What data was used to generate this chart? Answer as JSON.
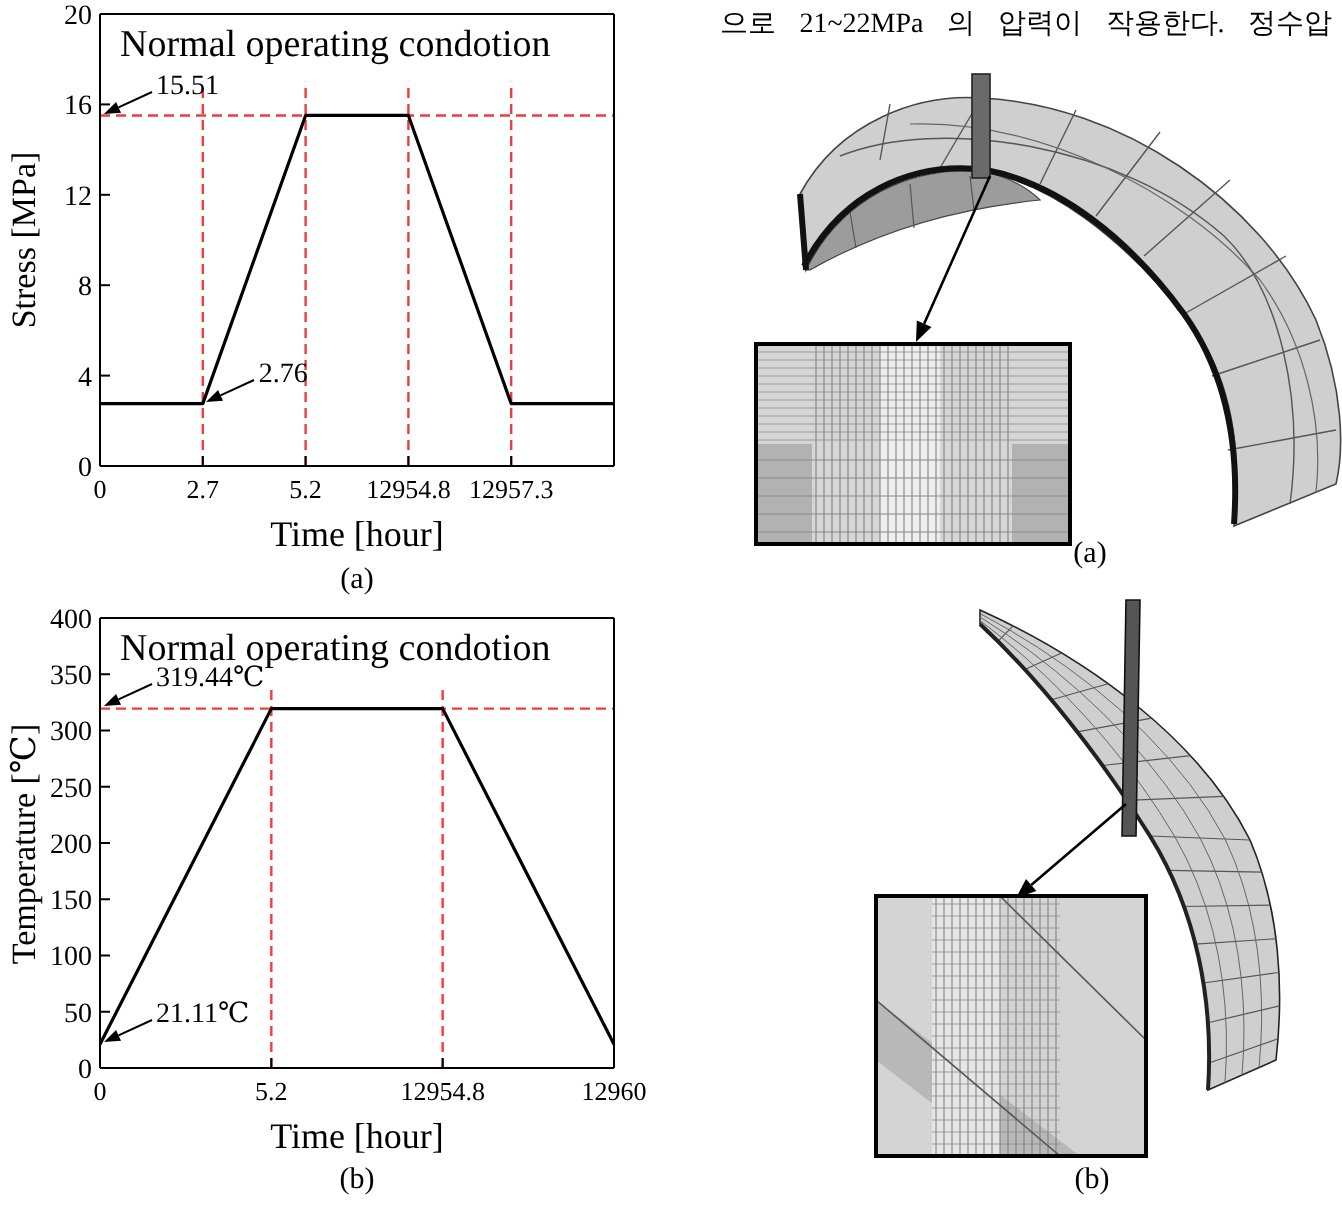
{
  "chart_data": [
    {
      "type": "line",
      "title": "Normal operating condotion",
      "xlabel": "Time [hour]",
      "ylabel": "Stress [MPa]",
      "categories": [
        "0",
        "2.7",
        "5.2",
        "12954.8",
        "12957.3",
        null
      ],
      "values": [
        2.76,
        2.76,
        15.51,
        15.51,
        2.76,
        2.76
      ],
      "color": "#000000",
      "ylim": [
        0,
        20
      ],
      "yticks": [
        0,
        4,
        8,
        12,
        16,
        20
      ],
      "ref_lines": [
        {
          "axis": "y",
          "value": 15.51,
          "color": "#f03c3c",
          "line_style": "dashed"
        },
        {
          "axis": "x",
          "value": "2.7",
          "color": "#f03c3c",
          "line_style": "dashed"
        },
        {
          "axis": "x",
          "value": "5.2",
          "color": "#f03c3c",
          "line_style": "dashed"
        },
        {
          "axis": "x",
          "value": "12954.8",
          "color": "#f03c3c",
          "line_style": "dashed"
        },
        {
          "axis": "x",
          "value": "12957.3",
          "color": "#f03c3c",
          "line_style": "dashed"
        }
      ],
      "annotations": [
        {
          "text": "15.51",
          "x": "0",
          "y": 15.51
        },
        {
          "text": "2.76",
          "x": "2.7",
          "y": 2.76
        },
        "(a)"
      ]
    },
    {
      "type": "line",
      "title": "Normal operating condotion",
      "xlabel": "Time [hour]",
      "ylabel": "Temperature [℃]",
      "categories": [
        "0",
        "5.2",
        "12954.8",
        "12960"
      ],
      "values": [
        21.11,
        319.44,
        319.44,
        21.11
      ],
      "color": "#000000",
      "ylim": [
        0,
        400
      ],
      "yticks": [
        0,
        50,
        100,
        150,
        200,
        250,
        300,
        350,
        400
      ],
      "ref_lines": [
        {
          "axis": "y",
          "value": 319.44,
          "color": "#f03c3c",
          "line_style": "dashed"
        },
        {
          "axis": "x",
          "value": "5.2",
          "color": "#f03c3c",
          "line_style": "dashed"
        },
        {
          "axis": "x",
          "value": "12954.8",
          "color": "#f03c3c",
          "line_style": "dashed"
        }
      ],
      "annotations": [
        {
          "text": "319.44℃",
          "x": "0",
          "y": 319.44
        },
        {
          "text": "21.11℃",
          "x": "0",
          "y": 21.11
        },
        "(b)"
      ]
    },
    {
      "type": "other",
      "annotations": [
        "으로 21~22MPa 의 압력이 작용한다. 정수압",
        "(a)",
        "(b)"
      ]
    }
  ]
}
